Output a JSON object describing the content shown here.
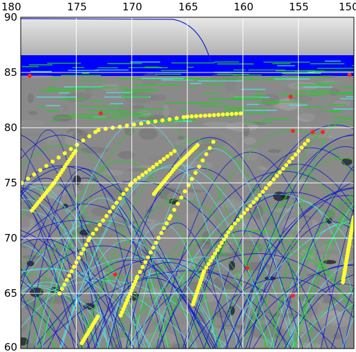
{
  "map": {
    "x_axis_labels": [
      "180",
      "175",
      "170",
      "165",
      "160",
      "155",
      "150"
    ],
    "x_axis_values": [
      180,
      175,
      170,
      165,
      160,
      155,
      150
    ],
    "y_axis_labels": [
      "90",
      "85",
      "80",
      "75",
      "70",
      "65",
      "60"
    ],
    "y_axis_values": [
      90,
      85,
      80,
      75,
      70,
      65,
      60
    ],
    "x_range": [
      180,
      150
    ],
    "y_range": [
      60,
      90
    ],
    "grid": true,
    "colors": {
      "ground": "#8a8a8a",
      "polar_cap": "#0000ff",
      "track_blue": "#1020c8",
      "track_green": "#22cc22",
      "track_cyan": "#55e0e0",
      "yellow_dots": "#ffff33",
      "red_dots": "#ff2222",
      "grid": "#ffffff"
    },
    "red_points": [
      [
        179.2,
        84.7
      ],
      [
        150.4,
        84.8
      ],
      [
        155.7,
        82.8
      ],
      [
        172.8,
        81.3
      ],
      [
        155.5,
        79.7
      ],
      [
        153.7,
        79.6
      ],
      [
        152.8,
        79.6
      ],
      [
        171.5,
        66.7
      ],
      [
        159.6,
        67.3
      ],
      [
        155.5,
        64.8
      ]
    ]
  }
}
